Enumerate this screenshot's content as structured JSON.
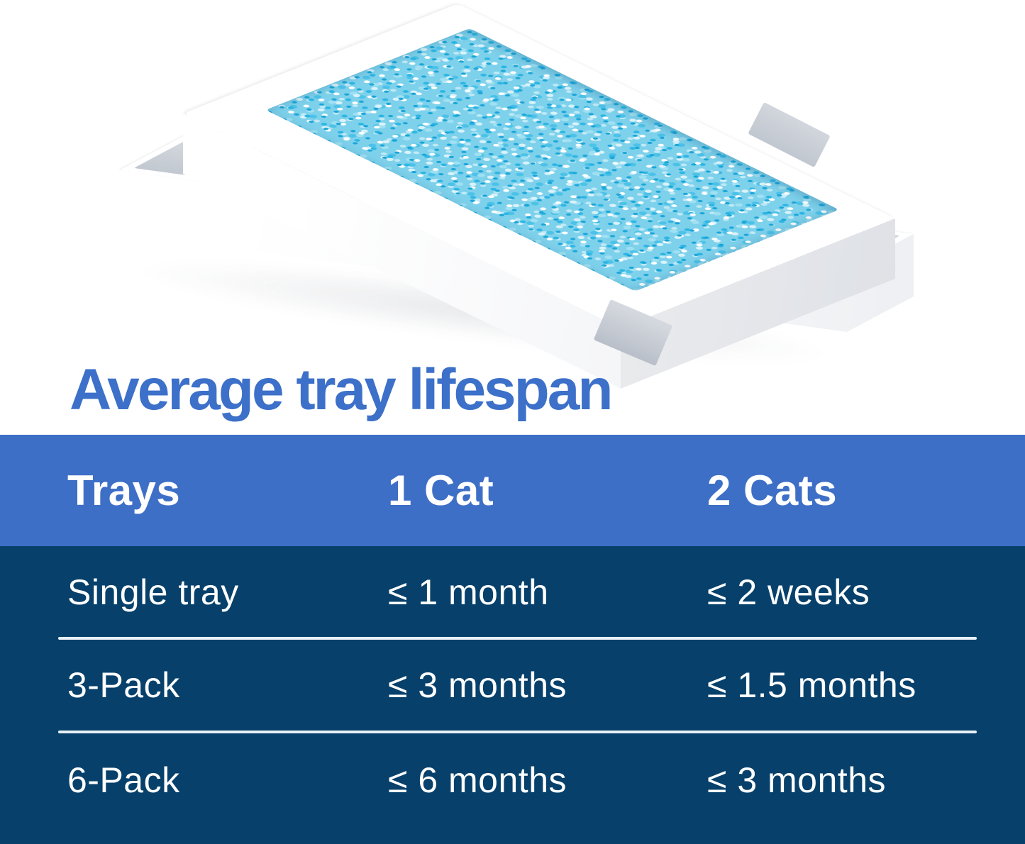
{
  "heading": {
    "text": "Average tray lifespan"
  },
  "colors": {
    "heading_blue": "#3c70c9",
    "header_bg": "#3e6fc7",
    "body_bg": "#07416b",
    "divider": "#e8f0f6",
    "text_white": "#ffffff",
    "litter_base": "#7ed1eb",
    "litter_bright": "#2db6e4",
    "tray_white": "#ffffff",
    "tray_interior_gray": "#c2c8d0",
    "tab_gray": "#c9ced6"
  },
  "table": {
    "columns": [
      "Trays",
      "1 Cat",
      "2 Cats"
    ],
    "rows": [
      {
        "label": "Single tray",
        "one_cat": "≤ 1 month",
        "two_cats": "≤ 2 weeks"
      },
      {
        "label": "3-Pack",
        "one_cat": "≤ 3 months",
        "two_cats": "≤ 1.5 months"
      },
      {
        "label": "6-Pack",
        "one_cat": "≤ 6 months",
        "two_cats": "≤ 3 months"
      }
    ]
  },
  "chart_data": {
    "type": "table",
    "title": "Average tray lifespan",
    "columns": [
      "Trays",
      "1 Cat",
      "2 Cats"
    ],
    "rows": [
      [
        "Single tray",
        "≤ 1 month",
        "≤ 2 weeks"
      ],
      [
        "3-Pack",
        "≤ 3 months",
        "≤ 1.5 months"
      ],
      [
        "6-Pack",
        "≤ 6 months",
        "≤ 3 months"
      ]
    ],
    "layout": {
      "header_position": "top",
      "grid": "horizontal dividers between body rows"
    }
  }
}
